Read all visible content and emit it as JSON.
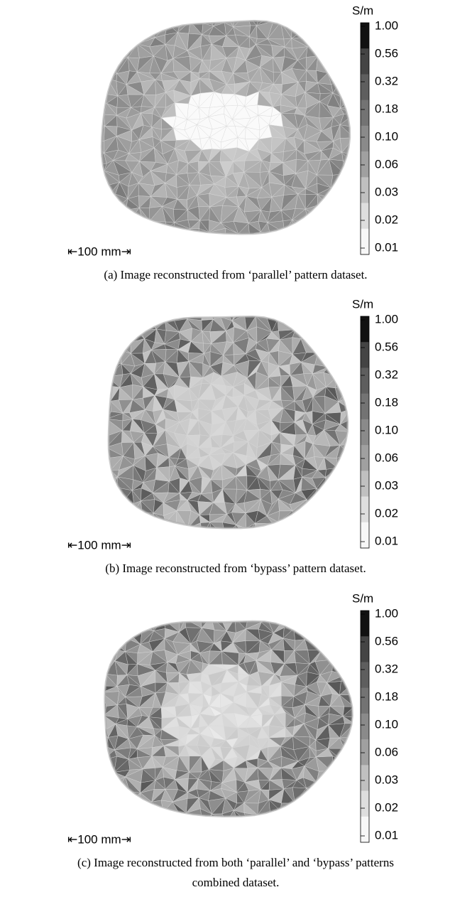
{
  "panels": [
    {
      "unit": "S/m",
      "colorbar_labels": [
        "1.00",
        "0.56",
        "0.32",
        "0.18",
        "0.10",
        "0.06",
        "0.03",
        "0.02",
        "0.01"
      ],
      "scale_bar": "⇤100 mm⇥",
      "caption_lines": [
        "(a) Image reconstructed from ‘parallel’ pattern dataset."
      ]
    },
    {
      "unit": "S/m",
      "colorbar_labels": [
        "1.00",
        "0.56",
        "0.32",
        "0.18",
        "0.10",
        "0.06",
        "0.03",
        "0.02",
        "0.01"
      ],
      "scale_bar": "⇤100 mm⇥",
      "caption_lines": [
        "(b) Image reconstructed from ‘bypass’ pattern dataset."
      ]
    },
    {
      "unit": "S/m",
      "colorbar_labels": [
        "1.00",
        "0.56",
        "0.32",
        "0.18",
        "0.10",
        "0.06",
        "0.03",
        "0.02",
        "0.01"
      ],
      "scale_bar": "⇤100 mm⇥",
      "caption_lines": [
        "(c) Image reconstructed from both ‘parallel’ and ‘bypass’ patterns",
        "combined dataset."
      ]
    }
  ]
}
